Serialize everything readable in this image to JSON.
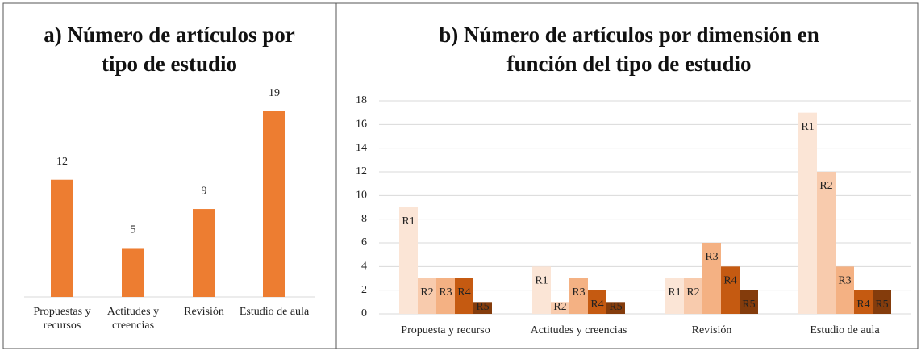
{
  "chart_data": [
    {
      "type": "bar",
      "title": "a) Número de artículos por tipo de estudio",
      "categories": [
        "Propuestas y recursos",
        "Actitudes y creencias",
        "Revisión",
        "Estudio de aula"
      ],
      "values": [
        12,
        5,
        9,
        19
      ],
      "color": "#ed7d31"
    },
    {
      "type": "grouped_bar",
      "title": "b) Número de artículos por dimensión en función del tipo de estudio",
      "categories": [
        "Propuesta y recurso",
        "Actitudes y creencias",
        "Revisión",
        "Estudio de aula"
      ],
      "series": [
        {
          "name": "R1",
          "color": "#fbe5d6",
          "values": [
            9,
            4,
            3,
            17
          ]
        },
        {
          "name": "R2",
          "color": "#f8cbad",
          "values": [
            3,
            1,
            3,
            12
          ]
        },
        {
          "name": "R3",
          "color": "#f4b183",
          "values": [
            3,
            3,
            6,
            4
          ]
        },
        {
          "name": "R4",
          "color": "#c55a11",
          "values": [
            3,
            2,
            4,
            2
          ]
        },
        {
          "name": "R5",
          "color": "#843c0c",
          "values": [
            1,
            1,
            2,
            2
          ]
        }
      ],
      "ylim": [
        0,
        18
      ],
      "yticks": [
        0,
        2,
        4,
        6,
        8,
        10,
        12,
        14,
        16,
        18
      ],
      "grid": true
    }
  ]
}
